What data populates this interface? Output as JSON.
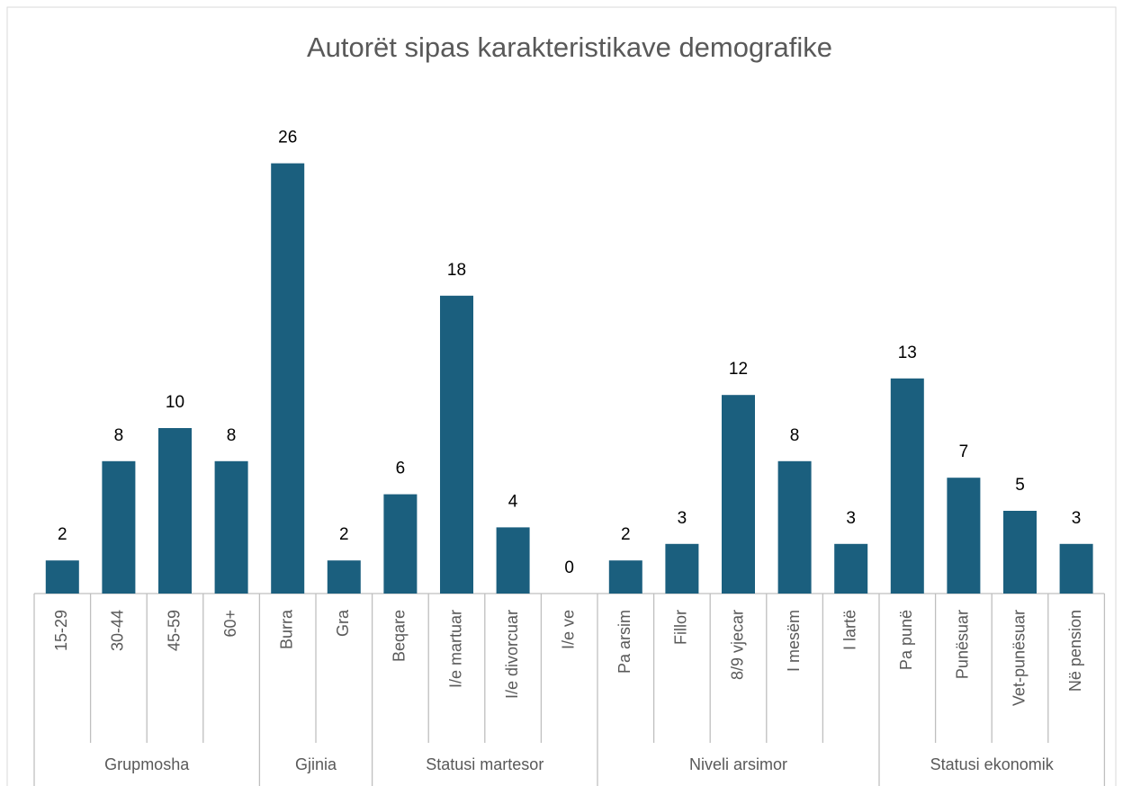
{
  "chart_data": {
    "type": "bar",
    "title": "Autorët sipas karakteristikave demografike",
    "color": "#1b5f7e",
    "groups": [
      {
        "name": "Grupmosha",
        "categories": [
          "15-29",
          "30-44",
          "45-59",
          "60+"
        ],
        "values": [
          2,
          8,
          10,
          8
        ]
      },
      {
        "name": "Gjinia",
        "categories": [
          "Burra",
          "Gra"
        ],
        "values": [
          26,
          2
        ]
      },
      {
        "name": "Statusi martesor",
        "categories": [
          "Beqare",
          "I/e martuar",
          "I/e divorcuar",
          "I/e ve"
        ],
        "values": [
          6,
          18,
          4,
          0
        ]
      },
      {
        "name": "Niveli arsimor",
        "categories": [
          "Pa arsim",
          "Fillor",
          "8/9 vjecar",
          "I mesëm",
          "I lartë"
        ],
        "values": [
          2,
          3,
          12,
          8,
          3
        ]
      },
      {
        "name": "Statusi ekonomik",
        "categories": [
          "Pa punë",
          "Punësuar",
          "Vet-punësuar",
          "Në pension"
        ],
        "values": [
          13,
          7,
          5,
          3
        ]
      }
    ]
  }
}
